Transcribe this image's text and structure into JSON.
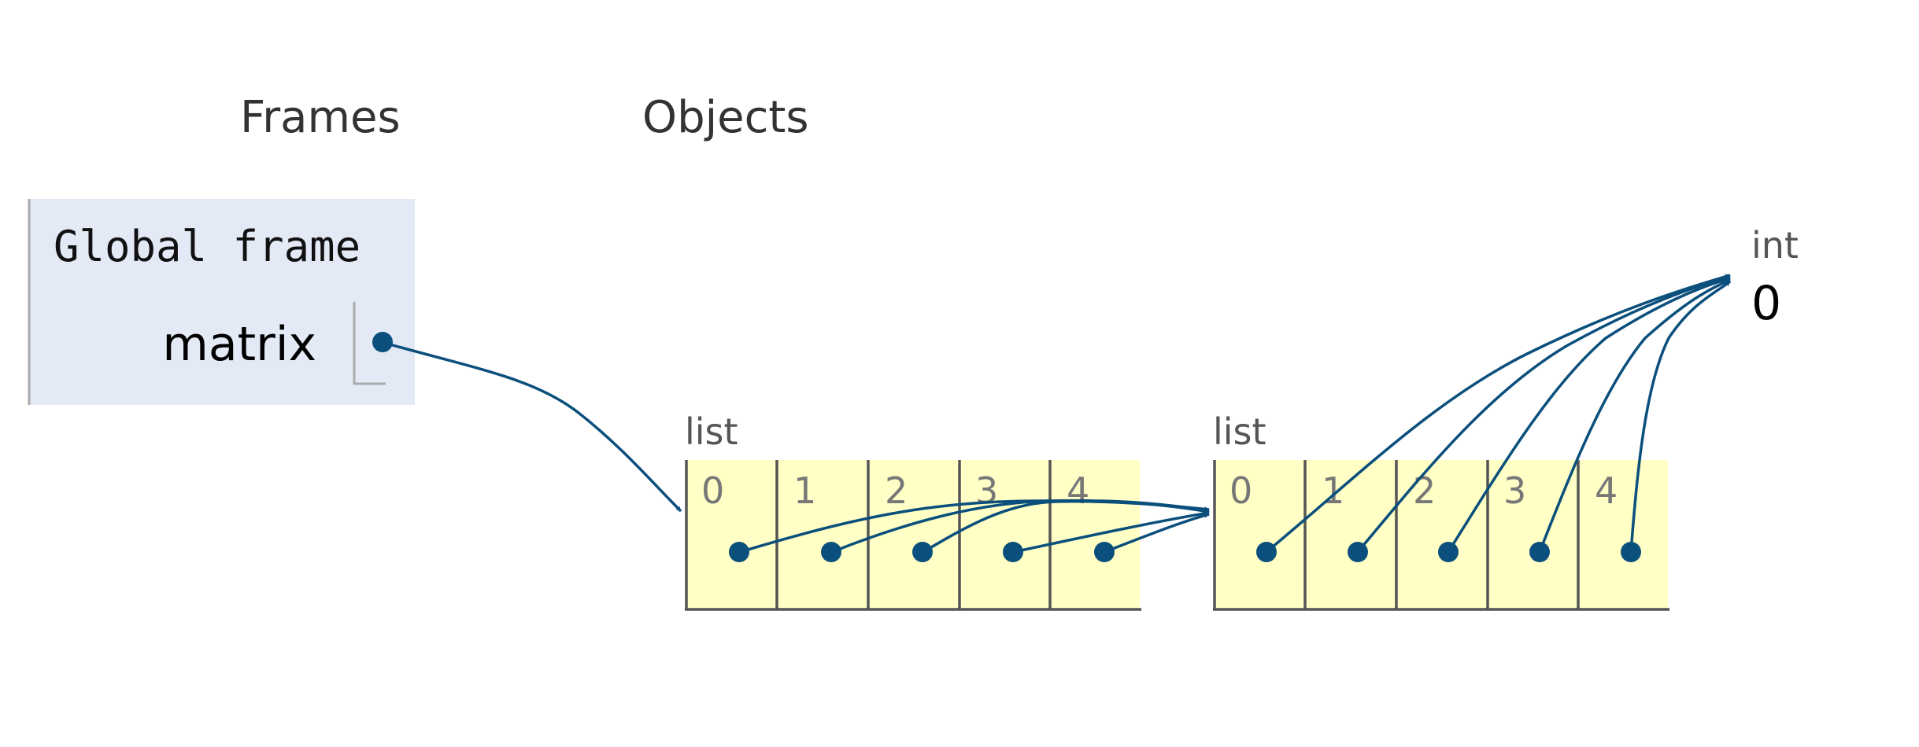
{
  "headings": {
    "frames": "Frames",
    "objects": "Objects"
  },
  "global_frame": {
    "title": "Global frame",
    "variables": [
      {
        "name": "matrix"
      }
    ]
  },
  "outer_list": {
    "type_label": "list",
    "indices": [
      "0",
      "1",
      "2",
      "3",
      "4"
    ]
  },
  "inner_list": {
    "type_label": "list",
    "indices": [
      "0",
      "1",
      "2",
      "3",
      "4"
    ]
  },
  "int_object": {
    "type_label": "int",
    "value": "0"
  },
  "colors": {
    "frame_bg": "#e3eaf6",
    "list_bg": "#ffffc6",
    "pointer": "#0b4f7c",
    "border": "#555555"
  }
}
